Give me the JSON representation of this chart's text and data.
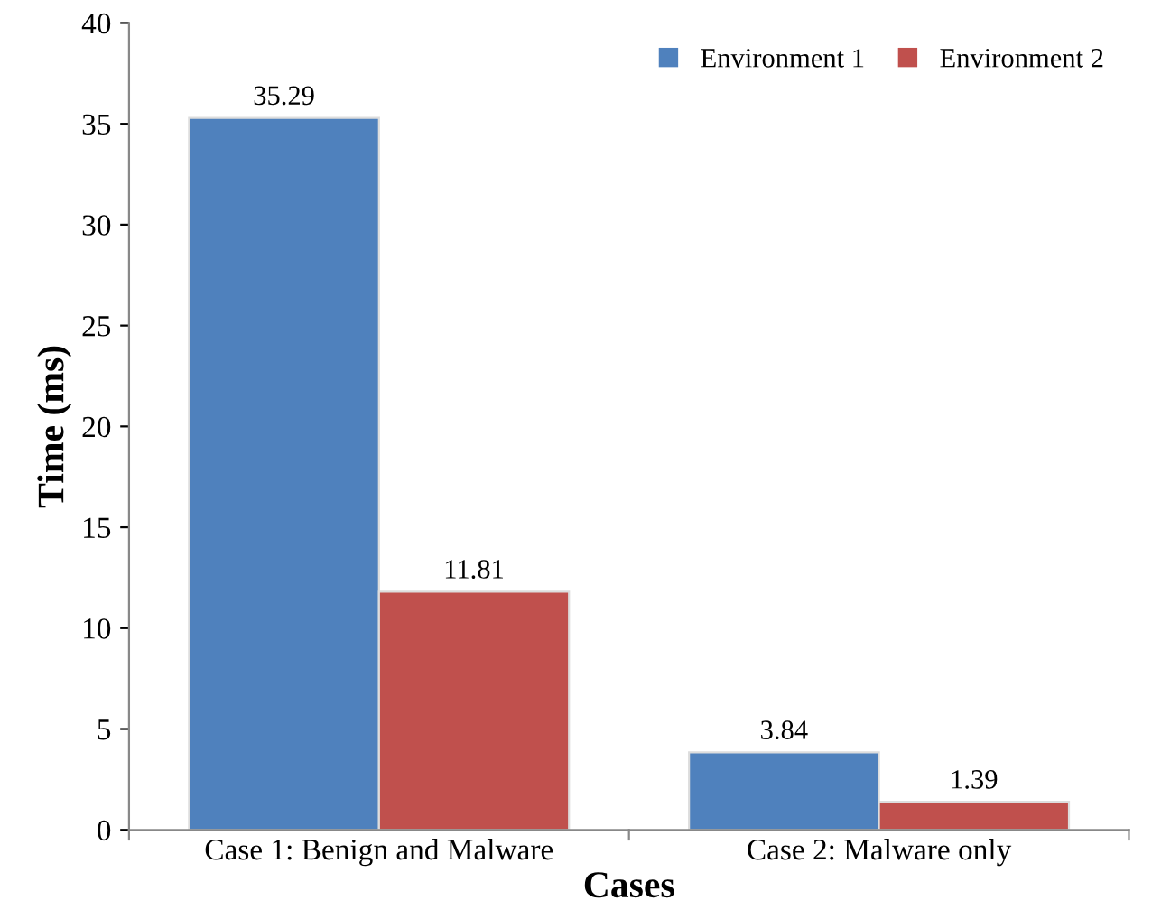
{
  "chart_data": {
    "type": "bar",
    "xlabel": "Cases",
    "ylabel": "Time (ms)",
    "categories": [
      "Case 1: Benign and Malware",
      "Case 2: Malware only"
    ],
    "series": [
      {
        "name": "Environment 1",
        "color": "#4f81bd",
        "values": [
          35.29,
          3.84
        ]
      },
      {
        "name": "Environment 2",
        "color": "#c0504d",
        "values": [
          11.81,
          1.39
        ]
      }
    ],
    "ylim": [
      0,
      40
    ],
    "yticks": [
      0,
      5,
      10,
      15,
      20,
      25,
      30,
      35,
      40
    ],
    "grid": false,
    "legend": "top right",
    "data_labels": true
  }
}
